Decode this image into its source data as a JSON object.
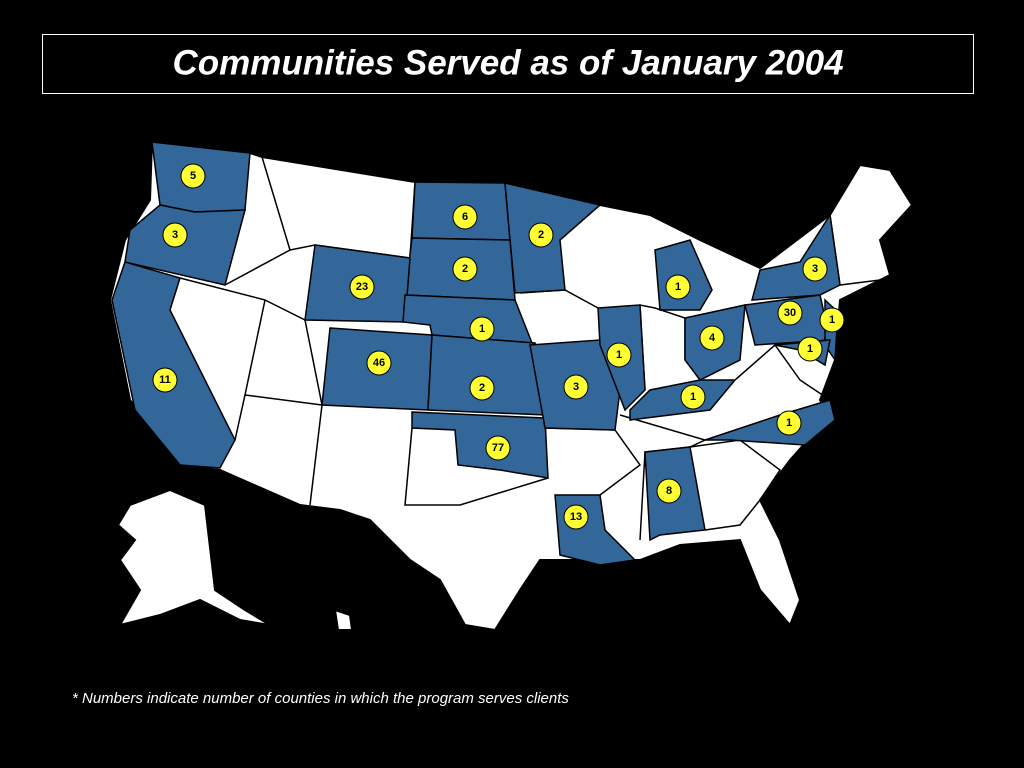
{
  "header": {
    "title": "Communities Served as of January 2004"
  },
  "map": {
    "markers": [
      5,
      3,
      11,
      6,
      2,
      2,
      23,
      1,
      46,
      2,
      77,
      3,
      1,
      1,
      4,
      1,
      30,
      1,
      1,
      3,
      1,
      8,
      13
    ]
  },
  "footnote": "* Numbers indicate number of counties in which the program serves clients"
}
